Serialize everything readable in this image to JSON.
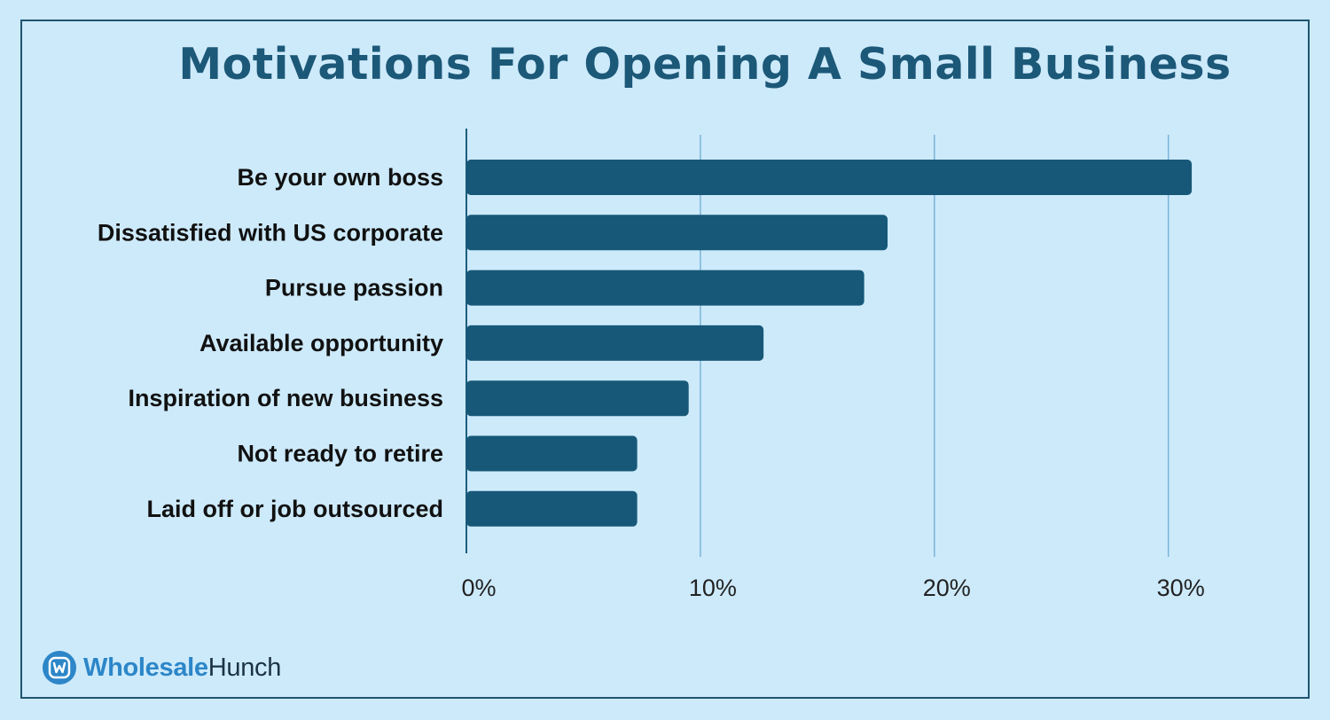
{
  "title": "Motivations For Opening A Small Business",
  "brand": {
    "part1": "Wholesale",
    "part2": "Hunch"
  },
  "colors": {
    "background": "#cdeafb",
    "bar": "#175878",
    "grid": "#7ab4d8",
    "title": "#1c5878",
    "brand_blue": "#2c86c8"
  },
  "chart_data": {
    "type": "bar",
    "orientation": "horizontal",
    "title": "Motivations For Opening A Small Business",
    "xlabel": "",
    "ylabel": "",
    "categories": [
      "Be your own boss",
      "Dissatisfied with US corporate",
      "Pursue passion",
      "Available opportunity",
      "Inspiration of new business",
      "Not ready to retire",
      "Laid off or job outsourced"
    ],
    "values": [
      31,
      18,
      17,
      12.7,
      9.5,
      7.3,
      7.3
    ],
    "unit": "%",
    "xlim": [
      0,
      31.3
    ],
    "xticks": [
      0,
      10,
      20,
      30
    ],
    "xtick_labels": [
      "0%",
      "10%",
      "20%",
      "30%"
    ],
    "grid": true,
    "legend": "none"
  }
}
